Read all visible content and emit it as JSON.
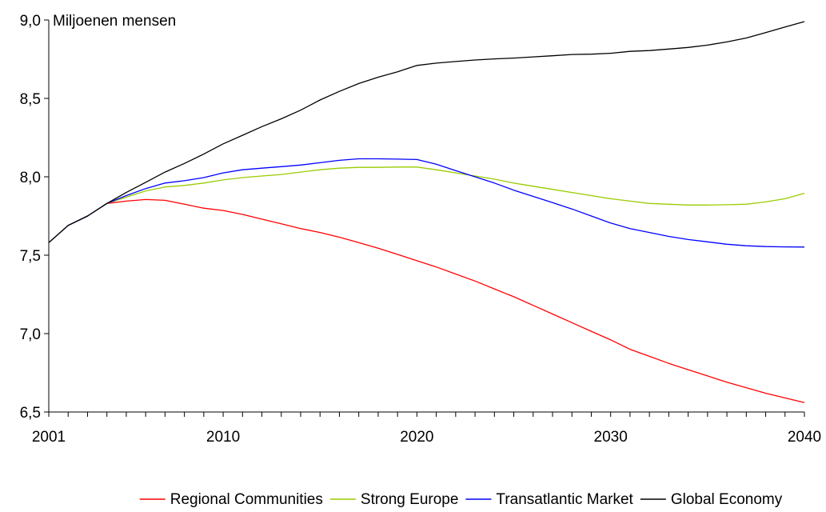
{
  "chart_data": {
    "type": "line",
    "ylabel": "Miljoenen mensen",
    "xlabel": "",
    "xlim": [
      2001,
      2040
    ],
    "ylim": [
      6.5,
      9.0
    ],
    "yticks": [
      6.5,
      7.0,
      7.5,
      8.0,
      8.5,
      9.0
    ],
    "ytick_labels": [
      "6,5",
      "7,0",
      "7,5",
      "8,0",
      "8,5",
      "9,0"
    ],
    "xtick_labels": [
      {
        "value": 2001,
        "label": "2001"
      },
      {
        "value": 2010,
        "label": "2010"
      },
      {
        "value": 2020,
        "label": "2020"
      },
      {
        "value": 2030,
        "label": "2030"
      },
      {
        "value": 2040,
        "label": "2040"
      }
    ],
    "grid": false,
    "legend_position": "bottom",
    "series": [
      {
        "name": "Regional Communities",
        "color": "#ff0000",
        "x": [
          2001,
          2002,
          2003,
          2004,
          2005,
          2006,
          2007,
          2008,
          2009,
          2010,
          2011,
          2012,
          2013,
          2014,
          2015,
          2016,
          2017,
          2018,
          2019,
          2020,
          2021,
          2022,
          2023,
          2024,
          2025,
          2026,
          2027,
          2028,
          2029,
          2030,
          2031,
          2032,
          2033,
          2034,
          2035,
          2036,
          2037,
          2038,
          2039,
          2040
        ],
        "values": [
          7.58,
          7.69,
          7.75,
          7.83,
          7.845,
          7.855,
          7.85,
          7.825,
          7.8,
          7.785,
          7.76,
          7.73,
          7.7,
          7.67,
          7.645,
          7.615,
          7.58,
          7.545,
          7.505,
          7.465,
          7.425,
          7.38,
          7.335,
          7.285,
          7.235,
          7.18,
          7.125,
          7.07,
          7.015,
          6.96,
          6.9,
          6.855,
          6.81,
          6.77,
          6.73,
          6.69,
          6.655,
          6.62,
          6.59,
          6.56
        ]
      },
      {
        "name": "Strong Europe",
        "color": "#99cc00",
        "x": [
          2001,
          2002,
          2003,
          2004,
          2005,
          2006,
          2007,
          2008,
          2009,
          2010,
          2011,
          2012,
          2013,
          2014,
          2015,
          2016,
          2017,
          2018,
          2019,
          2020,
          2021,
          2022,
          2023,
          2024,
          2025,
          2026,
          2027,
          2028,
          2029,
          2030,
          2031,
          2032,
          2033,
          2034,
          2035,
          2036,
          2037,
          2038,
          2039,
          2040
        ],
        "values": [
          7.58,
          7.69,
          7.75,
          7.83,
          7.87,
          7.91,
          7.935,
          7.945,
          7.96,
          7.98,
          7.995,
          8.005,
          8.015,
          8.03,
          8.045,
          8.055,
          8.06,
          8.06,
          8.062,
          8.062,
          8.045,
          8.025,
          8.005,
          7.985,
          7.96,
          7.94,
          7.92,
          7.9,
          7.88,
          7.86,
          7.845,
          7.83,
          7.825,
          7.82,
          7.82,
          7.822,
          7.825,
          7.84,
          7.86,
          7.895
        ]
      },
      {
        "name": "Transatlantic Market",
        "color": "#0000ff",
        "x": [
          2001,
          2002,
          2003,
          2004,
          2005,
          2006,
          2007,
          2008,
          2009,
          2010,
          2011,
          2012,
          2013,
          2014,
          2015,
          2016,
          2017,
          2018,
          2019,
          2020,
          2021,
          2022,
          2023,
          2024,
          2025,
          2026,
          2027,
          2028,
          2029,
          2030,
          2031,
          2032,
          2033,
          2034,
          2035,
          2036,
          2037,
          2038,
          2039,
          2040
        ],
        "values": [
          7.58,
          7.69,
          7.75,
          7.83,
          7.88,
          7.925,
          7.96,
          7.975,
          7.995,
          8.025,
          8.045,
          8.055,
          8.065,
          8.075,
          8.09,
          8.105,
          8.115,
          8.115,
          8.113,
          8.11,
          8.08,
          8.04,
          8.0,
          7.96,
          7.915,
          7.875,
          7.835,
          7.795,
          7.75,
          7.705,
          7.67,
          7.645,
          7.62,
          7.6,
          7.585,
          7.57,
          7.56,
          7.555,
          7.553,
          7.552
        ]
      },
      {
        "name": "Global Economy",
        "color": "#000000",
        "x": [
          2001,
          2002,
          2003,
          2004,
          2005,
          2006,
          2007,
          2008,
          2009,
          2010,
          2011,
          2012,
          2013,
          2014,
          2015,
          2016,
          2017,
          2018,
          2019,
          2020,
          2021,
          2022,
          2023,
          2024,
          2025,
          2026,
          2027,
          2028,
          2029,
          2030,
          2031,
          2032,
          2033,
          2034,
          2035,
          2036,
          2037,
          2038,
          2039,
          2040
        ],
        "values": [
          7.58,
          7.69,
          7.75,
          7.83,
          7.9,
          7.965,
          8.03,
          8.085,
          8.145,
          8.21,
          8.265,
          8.32,
          8.37,
          8.425,
          8.49,
          8.545,
          8.595,
          8.635,
          8.67,
          8.71,
          8.725,
          8.735,
          8.745,
          8.752,
          8.757,
          8.765,
          8.772,
          8.78,
          8.782,
          8.788,
          8.8,
          8.805,
          8.815,
          8.825,
          8.84,
          8.86,
          8.885,
          8.92,
          8.955,
          8.99
        ]
      }
    ]
  }
}
